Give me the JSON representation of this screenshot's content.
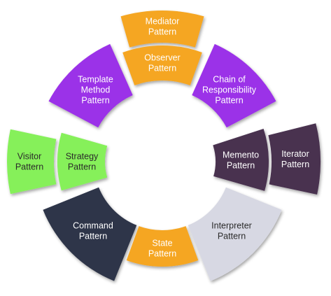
{
  "diagram": {
    "segments": [
      {
        "id": "mediator",
        "group": "orange",
        "lines": [
          "Mediator",
          "Pattern"
        ]
      },
      {
        "id": "observer",
        "group": "orange",
        "lines": [
          "Observer",
          "Pattern"
        ]
      },
      {
        "id": "template-method",
        "group": "purple",
        "lines": [
          "Template",
          "Method",
          "Pattern"
        ]
      },
      {
        "id": "chain",
        "group": "purple",
        "lines": [
          "Chain of",
          "Responsibility",
          "Pattern"
        ]
      },
      {
        "id": "visitor",
        "group": "green",
        "lines": [
          "Visitor",
          "Pattern"
        ]
      },
      {
        "id": "strategy",
        "group": "green",
        "lines": [
          "Strategy",
          "Pattern"
        ]
      },
      {
        "id": "memento",
        "group": "plum",
        "lines": [
          "Memento",
          "Pattern"
        ]
      },
      {
        "id": "iterator",
        "group": "plum",
        "lines": [
          "Iterator",
          "Pattern"
        ]
      },
      {
        "id": "command",
        "group": "navy",
        "lines": [
          "Command",
          "Pattern"
        ]
      },
      {
        "id": "state",
        "group": "orange",
        "lines": [
          "State",
          "Pattern"
        ]
      },
      {
        "id": "interpreter",
        "group": "silver",
        "lines": [
          "Interpreter",
          "Pattern"
        ]
      }
    ],
    "colors": {
      "orange": "#f5a623",
      "purple": "#9b30e8",
      "green": "#86f05a",
      "plum": "#4a3150",
      "navy": "#2e3549",
      "silver": "#d7d8e3",
      "text_light": "#ffffff",
      "text_dark": "#2a2a2a"
    }
  }
}
